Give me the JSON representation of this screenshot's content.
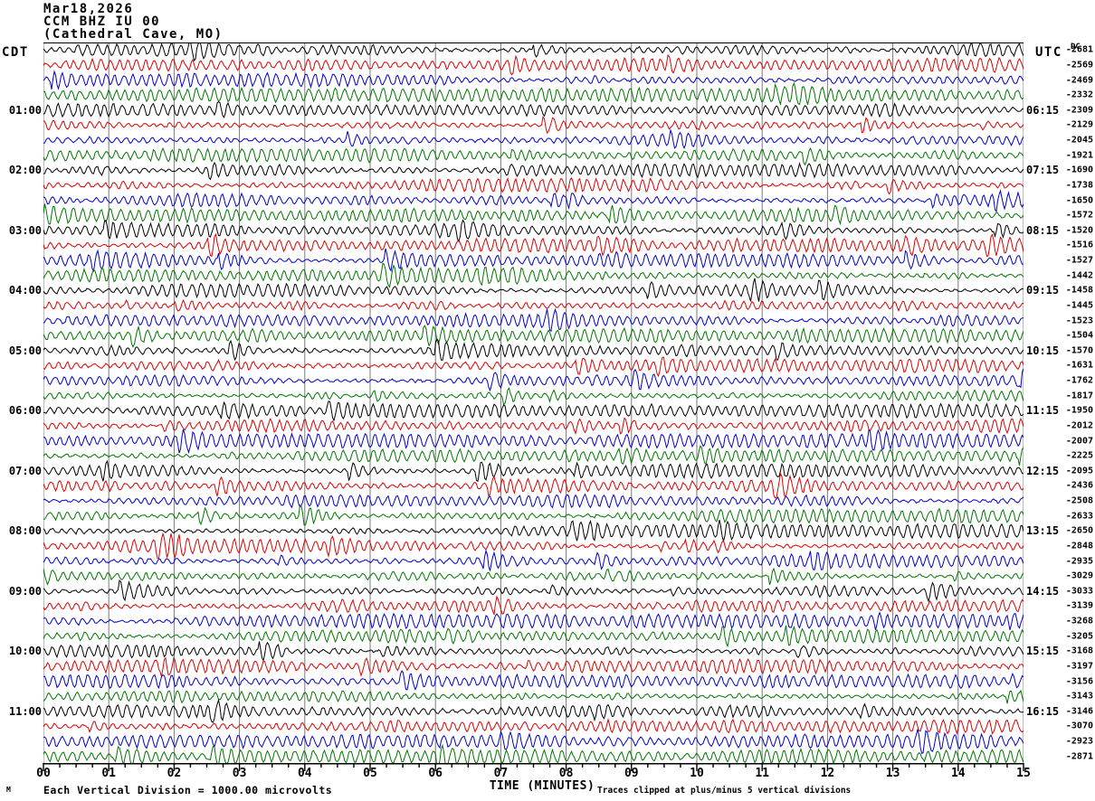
{
  "header": {
    "date": "Mar18,2026",
    "station": "CCM BHZ IU 00",
    "location": "(Cathedral Cave, MO)",
    "left_tz": "CDT",
    "right_tz": "UTC",
    "dc_label": "DC"
  },
  "footer": {
    "corner_mark": "M"
  },
  "chart_data": {
    "type": "line",
    "subtype": "helicorder-seismogram",
    "title": "CCM BHZ IU 00 (Cathedral Cave, MO) Mar18,2026",
    "xlabel": "TIME (MINUTES)",
    "x_ticks": [
      "00",
      "01",
      "02",
      "03",
      "04",
      "05",
      "06",
      "07",
      "08",
      "09",
      "10",
      "11",
      "12",
      "13",
      "14",
      "15"
    ],
    "x_range_minutes": [
      0,
      15
    ],
    "row_duration_minutes": 15,
    "minor_ticks_per_minute": 4,
    "left_time_zone": "CDT",
    "right_time_zone": "UTC",
    "grid": true,
    "grid_color": "#7a7a7a",
    "trace_color_cycle": [
      "black",
      "red",
      "blue",
      "green"
    ],
    "trace_colors": {
      "black": "#000000",
      "red": "#dd0000",
      "blue": "#0000cc",
      "green": "#007700"
    },
    "notes": [
      "Each Vertical Division = 1000.00 microvolts",
      "Traces clipped at plus/minus 5 vertical divisions"
    ],
    "rows": [
      {
        "color": "black",
        "cdt": "",
        "utc": "",
        "dc": "-2681"
      },
      {
        "color": "red",
        "cdt": "",
        "utc": "",
        "dc": "-2569"
      },
      {
        "color": "blue",
        "cdt": "",
        "utc": "",
        "dc": "-2469"
      },
      {
        "color": "green",
        "cdt": "",
        "utc": "",
        "dc": "-2332"
      },
      {
        "color": "black",
        "cdt": "01:00",
        "utc": "06:15",
        "dc": "-2309"
      },
      {
        "color": "red",
        "cdt": "",
        "utc": "",
        "dc": "-2129"
      },
      {
        "color": "blue",
        "cdt": "",
        "utc": "",
        "dc": "-2045"
      },
      {
        "color": "green",
        "cdt": "",
        "utc": "",
        "dc": "-1921"
      },
      {
        "color": "black",
        "cdt": "02:00",
        "utc": "07:15",
        "dc": "-1690"
      },
      {
        "color": "red",
        "cdt": "",
        "utc": "",
        "dc": "-1738"
      },
      {
        "color": "blue",
        "cdt": "",
        "utc": "",
        "dc": "-1650"
      },
      {
        "color": "green",
        "cdt": "",
        "utc": "",
        "dc": "-1572"
      },
      {
        "color": "black",
        "cdt": "03:00",
        "utc": "08:15",
        "dc": "-1520"
      },
      {
        "color": "red",
        "cdt": "",
        "utc": "",
        "dc": "-1516"
      },
      {
        "color": "blue",
        "cdt": "",
        "utc": "",
        "dc": "-1527"
      },
      {
        "color": "green",
        "cdt": "",
        "utc": "",
        "dc": "-1442"
      },
      {
        "color": "black",
        "cdt": "04:00",
        "utc": "09:15",
        "dc": "-1458"
      },
      {
        "color": "red",
        "cdt": "",
        "utc": "",
        "dc": "-1445"
      },
      {
        "color": "blue",
        "cdt": "",
        "utc": "",
        "dc": "-1523"
      },
      {
        "color": "green",
        "cdt": "",
        "utc": "",
        "dc": "-1504"
      },
      {
        "color": "black",
        "cdt": "05:00",
        "utc": "10:15",
        "dc": "-1570"
      },
      {
        "color": "red",
        "cdt": "",
        "utc": "",
        "dc": "-1631"
      },
      {
        "color": "blue",
        "cdt": "",
        "utc": "",
        "dc": "-1762"
      },
      {
        "color": "green",
        "cdt": "",
        "utc": "",
        "dc": "-1817"
      },
      {
        "color": "black",
        "cdt": "06:00",
        "utc": "11:15",
        "dc": "-1950"
      },
      {
        "color": "red",
        "cdt": "",
        "utc": "",
        "dc": "-2012"
      },
      {
        "color": "blue",
        "cdt": "",
        "utc": "",
        "dc": "-2007"
      },
      {
        "color": "green",
        "cdt": "",
        "utc": "",
        "dc": "-2225"
      },
      {
        "color": "black",
        "cdt": "07:00",
        "utc": "12:15",
        "dc": "-2095"
      },
      {
        "color": "red",
        "cdt": "",
        "utc": "",
        "dc": "-2436"
      },
      {
        "color": "blue",
        "cdt": "",
        "utc": "",
        "dc": "-2508"
      },
      {
        "color": "green",
        "cdt": "",
        "utc": "",
        "dc": "-2633"
      },
      {
        "color": "black",
        "cdt": "08:00",
        "utc": "13:15",
        "dc": "-2650"
      },
      {
        "color": "red",
        "cdt": "",
        "utc": "",
        "dc": "-2848"
      },
      {
        "color": "blue",
        "cdt": "",
        "utc": "",
        "dc": "-2935"
      },
      {
        "color": "green",
        "cdt": "",
        "utc": "",
        "dc": "-3029"
      },
      {
        "color": "black",
        "cdt": "09:00",
        "utc": "14:15",
        "dc": "-3033"
      },
      {
        "color": "red",
        "cdt": "",
        "utc": "",
        "dc": "-3139"
      },
      {
        "color": "blue",
        "cdt": "",
        "utc": "",
        "dc": "-3268"
      },
      {
        "color": "green",
        "cdt": "",
        "utc": "",
        "dc": "-3205"
      },
      {
        "color": "black",
        "cdt": "10:00",
        "utc": "15:15",
        "dc": "-3168"
      },
      {
        "color": "red",
        "cdt": "",
        "utc": "",
        "dc": "-3197"
      },
      {
        "color": "blue",
        "cdt": "",
        "utc": "",
        "dc": "-3156"
      },
      {
        "color": "green",
        "cdt": "",
        "utc": "",
        "dc": "-3143"
      },
      {
        "color": "black",
        "cdt": "11:00",
        "utc": "16:15",
        "dc": "-3146"
      },
      {
        "color": "red",
        "cdt": "",
        "utc": "",
        "dc": "-3070"
      },
      {
        "color": "blue",
        "cdt": "",
        "utc": "",
        "dc": "-2923"
      },
      {
        "color": "green",
        "cdt": "",
        "utc": "",
        "dc": "-2871"
      }
    ]
  }
}
